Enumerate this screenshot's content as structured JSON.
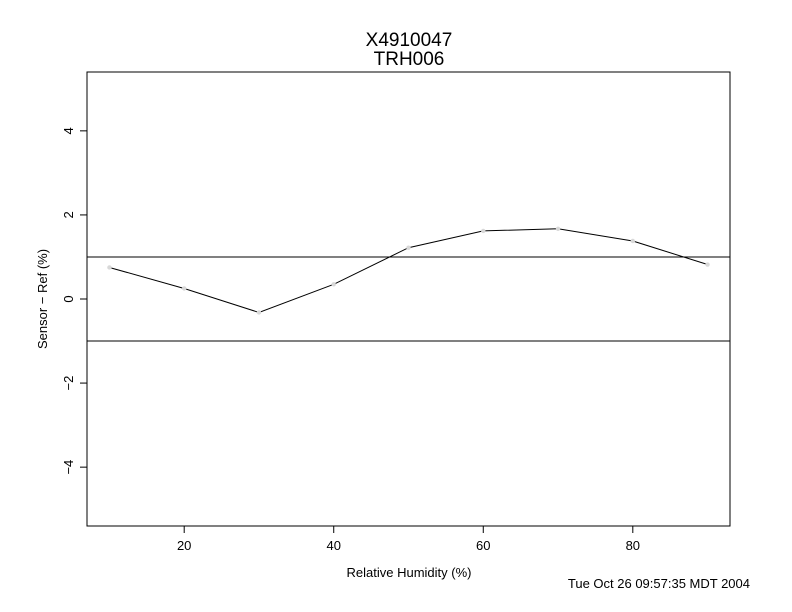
{
  "chart_data": {
    "type": "line",
    "title": "X4910047",
    "subtitle": "TRH006",
    "xlabel": "Relative Humidity (%)",
    "ylabel": "Sensor − Ref (%)",
    "xlim": [
      7,
      93
    ],
    "ylim": [
      -5.4,
      5.4
    ],
    "xticks": [
      20,
      40,
      60,
      80
    ],
    "yticks": [
      -4,
      -2,
      0,
      2,
      4
    ],
    "xtick_labels": [
      "20",
      "40",
      "60",
      "80"
    ],
    "ytick_labels": [
      "−4",
      "−2",
      "0",
      "2",
      "4"
    ],
    "series": [
      {
        "x": [
          10,
          20,
          30,
          40,
          50,
          60,
          70,
          80,
          90
        ],
        "y": [
          0.75,
          0.25,
          -0.32,
          0.35,
          1.22,
          1.62,
          1.67,
          1.38,
          0.82
        ]
      }
    ],
    "reference_lines": [
      1,
      -1
    ],
    "colors": {
      "line": "#000000",
      "marker": "#d8d8d8",
      "reference": "#000000"
    }
  },
  "timestamp": "Tue Oct 26 09:57:35 MDT 2004"
}
